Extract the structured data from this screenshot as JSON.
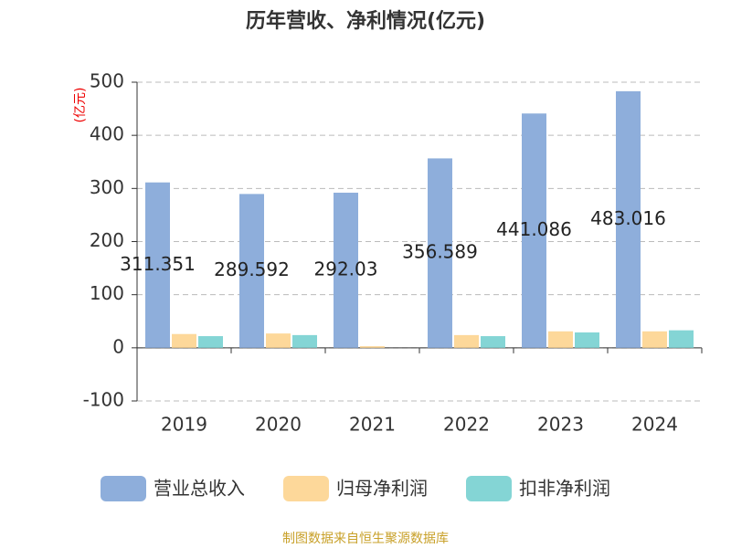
{
  "chart_data": {
    "type": "bar",
    "title": "历年营收、净利情况(亿元)",
    "y_label": "(亿元)",
    "source": "制图数据来自恒生聚源数据库",
    "categories": [
      "2019",
      "2020",
      "2021",
      "2022",
      "2023",
      "2024"
    ],
    "series": [
      {
        "name": "营业总收入",
        "color": "#8eaedb",
        "values": [
          311.351,
          289.592,
          292.03,
          356.589,
          441.086,
          483.016
        ],
        "show_labels": true
      },
      {
        "name": "归母净利润",
        "color": "#fdd89a",
        "values": [
          26,
          27,
          3,
          24,
          31,
          31
        ]
      },
      {
        "name": "扣非净利润",
        "color": "#84d5d5",
        "values": [
          22,
          24,
          0,
          22,
          29,
          33
        ]
      }
    ],
    "ylim": [
      -100,
      500
    ],
    "yticks": [
      -100,
      0,
      100,
      200,
      300,
      400,
      500
    ],
    "grid": true
  }
}
